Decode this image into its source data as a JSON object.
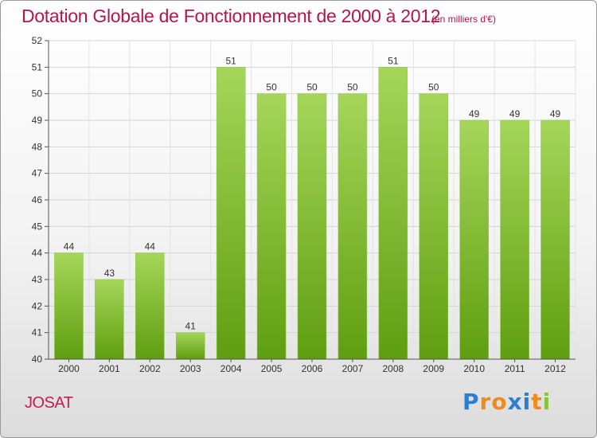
{
  "page": {
    "title": "Dotation Globale de Fonctionnement de 2000 à 2012",
    "unit": "(en milliers d'€)",
    "place": "JOSAT",
    "logo": {
      "letters": [
        "P",
        "r",
        "o",
        "x",
        "i",
        "t",
        "i"
      ],
      "colors": [
        "#2a7fd4",
        "#f08a1c",
        "#f08a1c",
        "#2a7fd4",
        "#2a7fd4",
        "#f08a1c",
        "#88c43a"
      ]
    }
  },
  "colors": {
    "bar_top": "#a5d65a",
    "bar_bottom": "#5f9e10",
    "title": "#b5154a",
    "axis": "#555555"
  },
  "chart_data": {
    "type": "bar",
    "categories": [
      "2000",
      "2001",
      "2002",
      "2003",
      "2004",
      "2005",
      "2006",
      "2007",
      "2008",
      "2009",
      "2010",
      "2011",
      "2012"
    ],
    "values": [
      44,
      43,
      44,
      41,
      51,
      50,
      50,
      50,
      51,
      50,
      49,
      49,
      49
    ],
    "data_labels": [
      "44",
      "43",
      "44",
      "41",
      "51",
      "50",
      "50",
      "50",
      "51",
      "50",
      "49",
      "49",
      "49"
    ],
    "yticks": [
      40,
      41,
      42,
      43,
      44,
      45,
      46,
      47,
      48,
      49,
      50,
      51,
      52
    ],
    "ylim": [
      40,
      52
    ],
    "grid": true,
    "legend": "none"
  }
}
